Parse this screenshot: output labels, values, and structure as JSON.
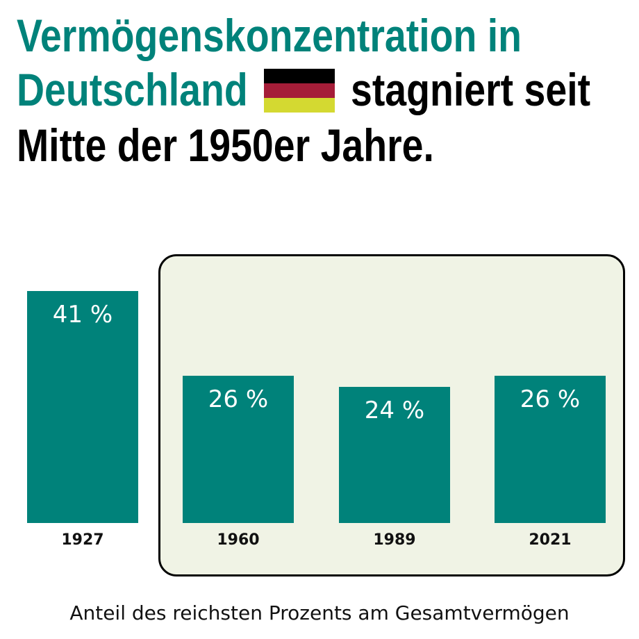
{
  "title": {
    "line1": "Vermögenskonzentration in",
    "line2_teal": "Deutschland",
    "line2_black": "stagniert seit",
    "line3": "Mitte der 1950er Jahre.",
    "flag_icon": "germany-flag-icon",
    "flag_colors": [
      "#000000",
      "#a51d38",
      "#d4d931"
    ]
  },
  "colors": {
    "accent": "#00827a",
    "highlight_box": "#f0f3e5"
  },
  "chart_data": {
    "type": "bar",
    "categories": [
      "1927",
      "1960",
      "1989",
      "2021"
    ],
    "values": [
      41,
      26,
      24,
      26
    ],
    "data_labels": [
      "41 %",
      "26 %",
      "24 %",
      "26 %"
    ],
    "xlabel": "Anteil des reichsten Prozents am Gesamtvermögen",
    "ylabel": "",
    "ylim": [
      0,
      41
    ],
    "highlighted_categories": [
      "1960",
      "1989",
      "2021"
    ],
    "grid": false
  }
}
